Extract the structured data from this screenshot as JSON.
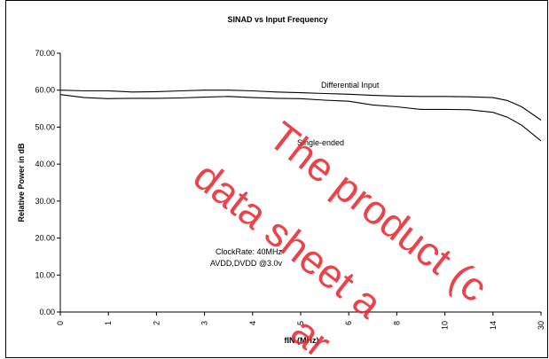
{
  "chart_data": {
    "type": "line",
    "title": "SINAD vs Input Frequency",
    "xlabel": "fIN (MHz)",
    "ylabel": "Relative Power in dB",
    "categories": [
      "0",
      "1",
      "2",
      "3",
      "4",
      "5",
      "6",
      "8",
      "10",
      "14",
      "30"
    ],
    "yticks": [
      "0.00",
      "10.00",
      "20.00",
      "30.00",
      "40.00",
      "50.00",
      "60.00",
      "70.00"
    ],
    "ylim": [
      0,
      70
    ],
    "grid": false,
    "series": [
      {
        "name": "Differential Input",
        "color": "#000000",
        "points": [
          [
            0,
            60.0
          ],
          [
            0.5,
            59.8
          ],
          [
            1,
            59.8
          ],
          [
            1.5,
            59.5
          ],
          [
            2,
            59.6
          ],
          [
            2.5,
            59.8
          ],
          [
            3,
            60.0
          ],
          [
            3.5,
            60.0
          ],
          [
            4,
            59.8
          ],
          [
            4.5,
            59.5
          ],
          [
            5,
            59.3
          ],
          [
            5.5,
            59.1
          ],
          [
            6,
            58.9
          ],
          [
            6.5,
            58.6
          ],
          [
            7,
            58.4
          ],
          [
            7.5,
            58.3
          ],
          [
            8,
            58.3
          ],
          [
            8.5,
            58.2
          ],
          [
            9,
            58.0
          ],
          [
            9.3,
            57.2
          ],
          [
            9.6,
            55.5
          ],
          [
            10,
            51.9
          ]
        ]
      },
      {
        "name": "Single-ended",
        "color": "#000000",
        "points": [
          [
            0,
            58.8
          ],
          [
            0.5,
            58.0
          ],
          [
            1,
            57.7
          ],
          [
            1.5,
            57.8
          ],
          [
            2,
            57.8
          ],
          [
            2.5,
            57.9
          ],
          [
            3,
            58.1
          ],
          [
            3.5,
            58.3
          ],
          [
            4,
            58.0
          ],
          [
            4.5,
            57.8
          ],
          [
            5,
            57.7
          ],
          [
            5.5,
            57.3
          ],
          [
            6,
            57.0
          ],
          [
            6.5,
            56.0
          ],
          [
            7,
            55.5
          ],
          [
            7.5,
            54.8
          ],
          [
            8,
            54.8
          ],
          [
            8.5,
            54.7
          ],
          [
            9,
            54.0
          ],
          [
            9.3,
            52.7
          ],
          [
            9.6,
            50.5
          ],
          [
            10,
            46.3
          ]
        ]
      }
    ],
    "annotations": [
      {
        "text": "Differential Input"
      },
      {
        "text": "Single-ended"
      },
      {
        "text": "ClockRate: 40MHz"
      },
      {
        "text": "AVDD,DVDD @3.0v"
      }
    ]
  },
  "watermark": {
    "line1": "The product (c",
    "line2": "data sheet a",
    "line3": "ar",
    "color": "#e8232a"
  }
}
